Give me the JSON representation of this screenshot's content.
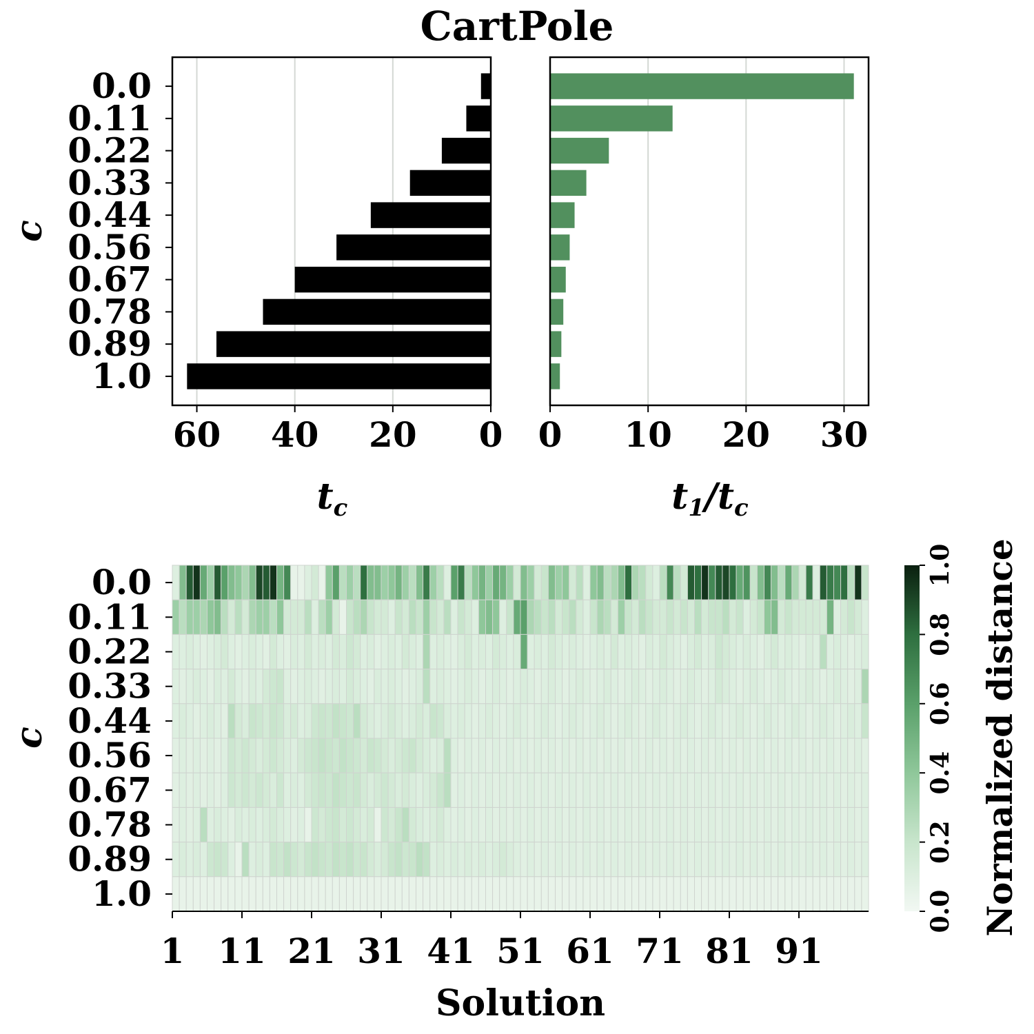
{
  "chart_data": [
    {
      "type": "bar",
      "orientation": "horizontal",
      "title": "CartPole",
      "ylabel": "c",
      "xlabel": "t_c",
      "x_inverted": true,
      "categories": [
        "0.0",
        "0.11",
        "0.22",
        "0.33",
        "0.44",
        "0.56",
        "0.67",
        "0.78",
        "0.89",
        "1.0"
      ],
      "values": [
        2,
        5,
        10,
        16.5,
        24.5,
        31.5,
        40,
        46.5,
        56,
        62
      ],
      "xlim": [
        0,
        65
      ],
      "xticks": [
        60,
        40,
        20,
        0
      ],
      "grid": true,
      "color": "#000000"
    },
    {
      "type": "bar",
      "orientation": "horizontal",
      "xlabel": "t_1/t_c",
      "categories": [
        "0.0",
        "0.11",
        "0.22",
        "0.33",
        "0.44",
        "0.56",
        "0.67",
        "0.78",
        "0.89",
        "1.0"
      ],
      "values": [
        31.0,
        12.5,
        6.0,
        3.7,
        2.5,
        2.0,
        1.6,
        1.35,
        1.15,
        1.0
      ],
      "xlim": [
        0,
        32.5
      ],
      "xticks": [
        0,
        10,
        20,
        30
      ],
      "grid": true,
      "color": "#52905e"
    },
    {
      "type": "heatmap",
      "xlabel": "Solution",
      "ylabel": "c",
      "rows": [
        "0.0",
        "0.11",
        "0.22",
        "0.33",
        "0.44",
        "0.56",
        "0.67",
        "0.78",
        "0.89",
        "1.0"
      ],
      "n_columns": 100,
      "xticks": [
        "1",
        "11",
        "21",
        "31",
        "41",
        "51",
        "61",
        "71",
        "81",
        "91"
      ],
      "colorbar": {
        "label": "Normalized distance",
        "range": [
          0,
          1
        ],
        "ticks": [
          "0.0",
          "0.2",
          "0.4",
          "0.6",
          "0.8",
          "1.0"
        ],
        "colormap": [
          "#f2f8f3",
          "#c8e5cc",
          "#8fc79a",
          "#5aa06a",
          "#2e6f3f",
          "#0a1f0f"
        ]
      },
      "values": [
        [
          0.1,
          0.45,
          0.85,
          0.95,
          0.55,
          0.35,
          0.85,
          0.6,
          0.45,
          0.4,
          0.3,
          0.45,
          0.9,
          0.85,
          0.95,
          0.5,
          0.7,
          0.05,
          0.05,
          0.1,
          0.15,
          0.05,
          0.4,
          0.6,
          0.25,
          0.35,
          0.25,
          0.8,
          0.45,
          0.45,
          0.35,
          0.4,
          0.5,
          0.35,
          0.25,
          0.45,
          0.75,
          0.35,
          0.25,
          0.1,
          0.6,
          0.75,
          0.25,
          0.4,
          0.5,
          0.35,
          0.55,
          0.5,
          0.35,
          0.15,
          0.45,
          0.35,
          0.15,
          0.2,
          0.45,
          0.35,
          0.4,
          0.15,
          0.25,
          0.1,
          0.4,
          0.45,
          0.25,
          0.3,
          0.45,
          0.8,
          0.3,
          0.25,
          0.15,
          0.1,
          0.25,
          0.7,
          0.25,
          0.15,
          0.85,
          0.8,
          0.95,
          0.7,
          0.85,
          0.9,
          0.8,
          0.55,
          0.65,
          0.2,
          0.45,
          0.7,
          0.45,
          0.25,
          0.55,
          0.3,
          0.15,
          0.75,
          0.1,
          0.85,
          0.75,
          0.7,
          0.8,
          0.25,
          0.95,
          0.2
        ],
        [
          0.35,
          0.25,
          0.35,
          0.35,
          0.3,
          0.4,
          0.45,
          0.25,
          0.15,
          0.25,
          0.15,
          0.3,
          0.35,
          0.35,
          0.25,
          0.4,
          0.15,
          0.15,
          0.15,
          0.25,
          0.1,
          0.25,
          0.35,
          0.15,
          0.05,
          0.2,
          0.25,
          0.3,
          0.2,
          0.15,
          0.15,
          0.1,
          0.2,
          0.15,
          0.25,
          0.2,
          0.35,
          0.2,
          0.15,
          0.25,
          0.1,
          0.2,
          0.15,
          0.1,
          0.4,
          0.45,
          0.4,
          0.1,
          0.2,
          0.55,
          0.6,
          0.3,
          0.25,
          0.2,
          0.25,
          0.15,
          0.2,
          0.25,
          0.15,
          0.1,
          0.2,
          0.3,
          0.25,
          0.15,
          0.35,
          0.2,
          0.15,
          0.25,
          0.2,
          0.15,
          0.15,
          0.2,
          0.15,
          0.2,
          0.15,
          0.25,
          0.15,
          0.2,
          0.2,
          0.25,
          0.15,
          0.2,
          0.1,
          0.15,
          0.2,
          0.4,
          0.45,
          0.15,
          0.2,
          0.15,
          0.15,
          0.15,
          0.15,
          0.15,
          0.5,
          0.1,
          0.15,
          0.2,
          0.15,
          0.1
        ],
        [
          0.1,
          0.1,
          0.12,
          0.1,
          0.08,
          0.1,
          0.12,
          0.15,
          0.1,
          0.08,
          0.1,
          0.12,
          0.1,
          0.08,
          0.15,
          0.1,
          0.08,
          0.12,
          0.1,
          0.15,
          0.1,
          0.12,
          0.1,
          0.15,
          0.12,
          0.18,
          0.15,
          0.1,
          0.12,
          0.08,
          0.1,
          0.12,
          0.1,
          0.15,
          0.12,
          0.1,
          0.3,
          0.1,
          0.12,
          0.1,
          0.08,
          0.12,
          0.15,
          0.1,
          0.12,
          0.1,
          0.15,
          0.12,
          0.1,
          0.12,
          0.55,
          0.1,
          0.12,
          0.1,
          0.15,
          0.12,
          0.1,
          0.12,
          0.1,
          0.08,
          0.1,
          0.12,
          0.1,
          0.15,
          0.1,
          0.12,
          0.1,
          0.08,
          0.12,
          0.1,
          0.15,
          0.12,
          0.1,
          0.08,
          0.12,
          0.15,
          0.1,
          0.12,
          0.18,
          0.15,
          0.12,
          0.1,
          0.12,
          0.1,
          0.08,
          0.12,
          0.15,
          0.1,
          0.12,
          0.1,
          0.08,
          0.12,
          0.1,
          0.25,
          0.1,
          0.12,
          0.1,
          0.08,
          0.1,
          0.12
        ],
        [
          0.1,
          0.08,
          0.1,
          0.12,
          0.1,
          0.08,
          0.12,
          0.1,
          0.15,
          0.1,
          0.08,
          0.12,
          0.1,
          0.15,
          0.18,
          0.2,
          0.1,
          0.08,
          0.1,
          0.12,
          0.1,
          0.08,
          0.1,
          0.12,
          0.1,
          0.15,
          0.12,
          0.1,
          0.08,
          0.12,
          0.1,
          0.12,
          0.1,
          0.08,
          0.1,
          0.12,
          0.25,
          0.1,
          0.12,
          0.1,
          0.08,
          0.1,
          0.12,
          0.1,
          0.08,
          0.1,
          0.12,
          0.1,
          0.08,
          0.1,
          0.12,
          0.1,
          0.08,
          0.1,
          0.12,
          0.1,
          0.08,
          0.1,
          0.12,
          0.1,
          0.08,
          0.1,
          0.12,
          0.1,
          0.08,
          0.1,
          0.12,
          0.1,
          0.08,
          0.1,
          0.12,
          0.1,
          0.08,
          0.1,
          0.12,
          0.1,
          0.08,
          0.1,
          0.15,
          0.12,
          0.1,
          0.08,
          0.1,
          0.12,
          0.1,
          0.08,
          0.1,
          0.12,
          0.1,
          0.08,
          0.1,
          0.12,
          0.1,
          0.08,
          0.1,
          0.12,
          0.1,
          0.08,
          0.1,
          0.3
        ],
        [
          0.1,
          0.12,
          0.1,
          0.08,
          0.1,
          0.12,
          0.1,
          0.08,
          0.25,
          0.15,
          0.12,
          0.2,
          0.18,
          0.15,
          0.2,
          0.18,
          0.12,
          0.15,
          0.1,
          0.12,
          0.18,
          0.2,
          0.18,
          0.22,
          0.2,
          0.18,
          0.25,
          0.15,
          0.12,
          0.1,
          0.12,
          0.15,
          0.12,
          0.1,
          0.12,
          0.15,
          0.12,
          0.2,
          0.18,
          0.12,
          0.1,
          0.12,
          0.1,
          0.08,
          0.1,
          0.12,
          0.1,
          0.08,
          0.1,
          0.12,
          0.1,
          0.08,
          0.1,
          0.12,
          0.1,
          0.08,
          0.1,
          0.12,
          0.1,
          0.08,
          0.1,
          0.12,
          0.1,
          0.08,
          0.1,
          0.12,
          0.1,
          0.08,
          0.1,
          0.12,
          0.1,
          0.08,
          0.1,
          0.12,
          0.1,
          0.08,
          0.1,
          0.12,
          0.1,
          0.08,
          0.1,
          0.12,
          0.1,
          0.08,
          0.1,
          0.12,
          0.1,
          0.08,
          0.1,
          0.12,
          0.1,
          0.08,
          0.1,
          0.12,
          0.1,
          0.08,
          0.1,
          0.12,
          0.1,
          0.2
        ],
        [
          0.08,
          0.1,
          0.08,
          0.1,
          0.08,
          0.1,
          0.08,
          0.1,
          0.18,
          0.15,
          0.18,
          0.15,
          0.12,
          0.15,
          0.18,
          0.15,
          0.12,
          0.1,
          0.15,
          0.18,
          0.2,
          0.22,
          0.2,
          0.18,
          0.22,
          0.2,
          0.18,
          0.15,
          0.2,
          0.18,
          0.15,
          0.12,
          0.15,
          0.18,
          0.2,
          0.15,
          0.12,
          0.1,
          0.12,
          0.25,
          0.1,
          0.08,
          0.1,
          0.08,
          0.1,
          0.08,
          0.1,
          0.08,
          0.1,
          0.08,
          0.1,
          0.08,
          0.1,
          0.08,
          0.1,
          0.08,
          0.1,
          0.08,
          0.1,
          0.08,
          0.1,
          0.08,
          0.1,
          0.08,
          0.1,
          0.08,
          0.1,
          0.08,
          0.1,
          0.08,
          0.1,
          0.08,
          0.1,
          0.08,
          0.1,
          0.08,
          0.1,
          0.08,
          0.1,
          0.08,
          0.1,
          0.08,
          0.1,
          0.08,
          0.1,
          0.08,
          0.1,
          0.08,
          0.1,
          0.08,
          0.1,
          0.08,
          0.1,
          0.08,
          0.1,
          0.08,
          0.1,
          0.08,
          0.1,
          0.08
        ],
        [
          0.08,
          0.1,
          0.08,
          0.1,
          0.08,
          0.1,
          0.08,
          0.1,
          0.18,
          0.15,
          0.18,
          0.15,
          0.18,
          0.15,
          0.12,
          0.18,
          0.1,
          0.12,
          0.1,
          0.15,
          0.18,
          0.2,
          0.18,
          0.22,
          0.2,
          0.18,
          0.2,
          0.15,
          0.12,
          0.15,
          0.18,
          0.15,
          0.12,
          0.15,
          0.12,
          0.1,
          0.12,
          0.15,
          0.2,
          0.25,
          0.08,
          0.1,
          0.08,
          0.1,
          0.08,
          0.1,
          0.08,
          0.1,
          0.08,
          0.1,
          0.08,
          0.1,
          0.08,
          0.1,
          0.08,
          0.1,
          0.08,
          0.1,
          0.08,
          0.1,
          0.08,
          0.1,
          0.08,
          0.1,
          0.08,
          0.1,
          0.08,
          0.1,
          0.08,
          0.1,
          0.08,
          0.1,
          0.08,
          0.1,
          0.08,
          0.1,
          0.08,
          0.1,
          0.08,
          0.1,
          0.08,
          0.1,
          0.08,
          0.1,
          0.08,
          0.1,
          0.08,
          0.1,
          0.08,
          0.1,
          0.08,
          0.1,
          0.08,
          0.1,
          0.08,
          0.1,
          0.08,
          0.1,
          0.08,
          0.1
        ],
        [
          0.08,
          0.1,
          0.08,
          0.1,
          0.25,
          0.1,
          0.12,
          0.1,
          0.08,
          0.12,
          0.1,
          0.12,
          0.1,
          0.12,
          0.15,
          0.12,
          0.1,
          0.08,
          0.1,
          0.05,
          0.18,
          0.15,
          0.18,
          0.2,
          0.15,
          0.18,
          0.15,
          0.12,
          0.15,
          0.05,
          0.18,
          0.15,
          0.2,
          0.25,
          0.15,
          0.12,
          0.1,
          0.12,
          0.15,
          0.1,
          0.08,
          0.1,
          0.08,
          0.1,
          0.08,
          0.1,
          0.08,
          0.1,
          0.08,
          0.1,
          0.08,
          0.1,
          0.08,
          0.1,
          0.08,
          0.1,
          0.08,
          0.1,
          0.08,
          0.1,
          0.08,
          0.1,
          0.08,
          0.1,
          0.08,
          0.1,
          0.08,
          0.1,
          0.08,
          0.1,
          0.08,
          0.1,
          0.08,
          0.1,
          0.08,
          0.1,
          0.08,
          0.1,
          0.08,
          0.1,
          0.08,
          0.1,
          0.08,
          0.1,
          0.08,
          0.1,
          0.08,
          0.1,
          0.08,
          0.1,
          0.08,
          0.1,
          0.08,
          0.1,
          0.08,
          0.1,
          0.08,
          0.1,
          0.08,
          0.1
        ],
        [
          0.1,
          0.12,
          0.1,
          0.12,
          0.1,
          0.18,
          0.2,
          0.18,
          0.1,
          0.05,
          0.25,
          0.1,
          0.12,
          0.1,
          0.2,
          0.18,
          0.22,
          0.18,
          0.15,
          0.2,
          0.22,
          0.2,
          0.18,
          0.22,
          0.2,
          0.22,
          0.18,
          0.2,
          0.15,
          0.12,
          0.15,
          0.2,
          0.22,
          0.18,
          0.2,
          0.25,
          0.22,
          0.1,
          0.12,
          0.1,
          0.12,
          0.1,
          0.12,
          0.1,
          0.12,
          0.1,
          0.12,
          0.15,
          0.12,
          0.1,
          0.08,
          0.1,
          0.08,
          0.1,
          0.08,
          0.1,
          0.08,
          0.1,
          0.08,
          0.1,
          0.08,
          0.1,
          0.08,
          0.1,
          0.08,
          0.1,
          0.08,
          0.1,
          0.08,
          0.1,
          0.08,
          0.1,
          0.08,
          0.1,
          0.08,
          0.1,
          0.08,
          0.1,
          0.08,
          0.1,
          0.08,
          0.1,
          0.08,
          0.1,
          0.08,
          0.1,
          0.08,
          0.1,
          0.08,
          0.1,
          0.08,
          0.1,
          0.08,
          0.1,
          0.08,
          0.1,
          0.08,
          0.1,
          0.08,
          0.1
        ],
        [
          0.05,
          0.05,
          0.05,
          0.05,
          0.05,
          0.05,
          0.05,
          0.05,
          0.05,
          0.05,
          0.05,
          0.05,
          0.05,
          0.05,
          0.05,
          0.05,
          0.05,
          0.05,
          0.05,
          0.05,
          0.05,
          0.05,
          0.05,
          0.05,
          0.05,
          0.05,
          0.05,
          0.05,
          0.05,
          0.05,
          0.05,
          0.05,
          0.05,
          0.05,
          0.05,
          0.05,
          0.05,
          0.05,
          0.05,
          0.05,
          0.05,
          0.05,
          0.05,
          0.05,
          0.05,
          0.05,
          0.05,
          0.05,
          0.05,
          0.05,
          0.05,
          0.05,
          0.05,
          0.05,
          0.05,
          0.05,
          0.05,
          0.05,
          0.05,
          0.05,
          0.05,
          0.05,
          0.05,
          0.05,
          0.05,
          0.05,
          0.05,
          0.05,
          0.05,
          0.05,
          0.05,
          0.05,
          0.05,
          0.05,
          0.05,
          0.05,
          0.05,
          0.05,
          0.05,
          0.05,
          0.05,
          0.05,
          0.05,
          0.05,
          0.05,
          0.05,
          0.05,
          0.05,
          0.05,
          0.05,
          0.05,
          0.05,
          0.05,
          0.05,
          0.05,
          0.05,
          0.05,
          0.05,
          0.05,
          0.05
        ]
      ]
    }
  ]
}
